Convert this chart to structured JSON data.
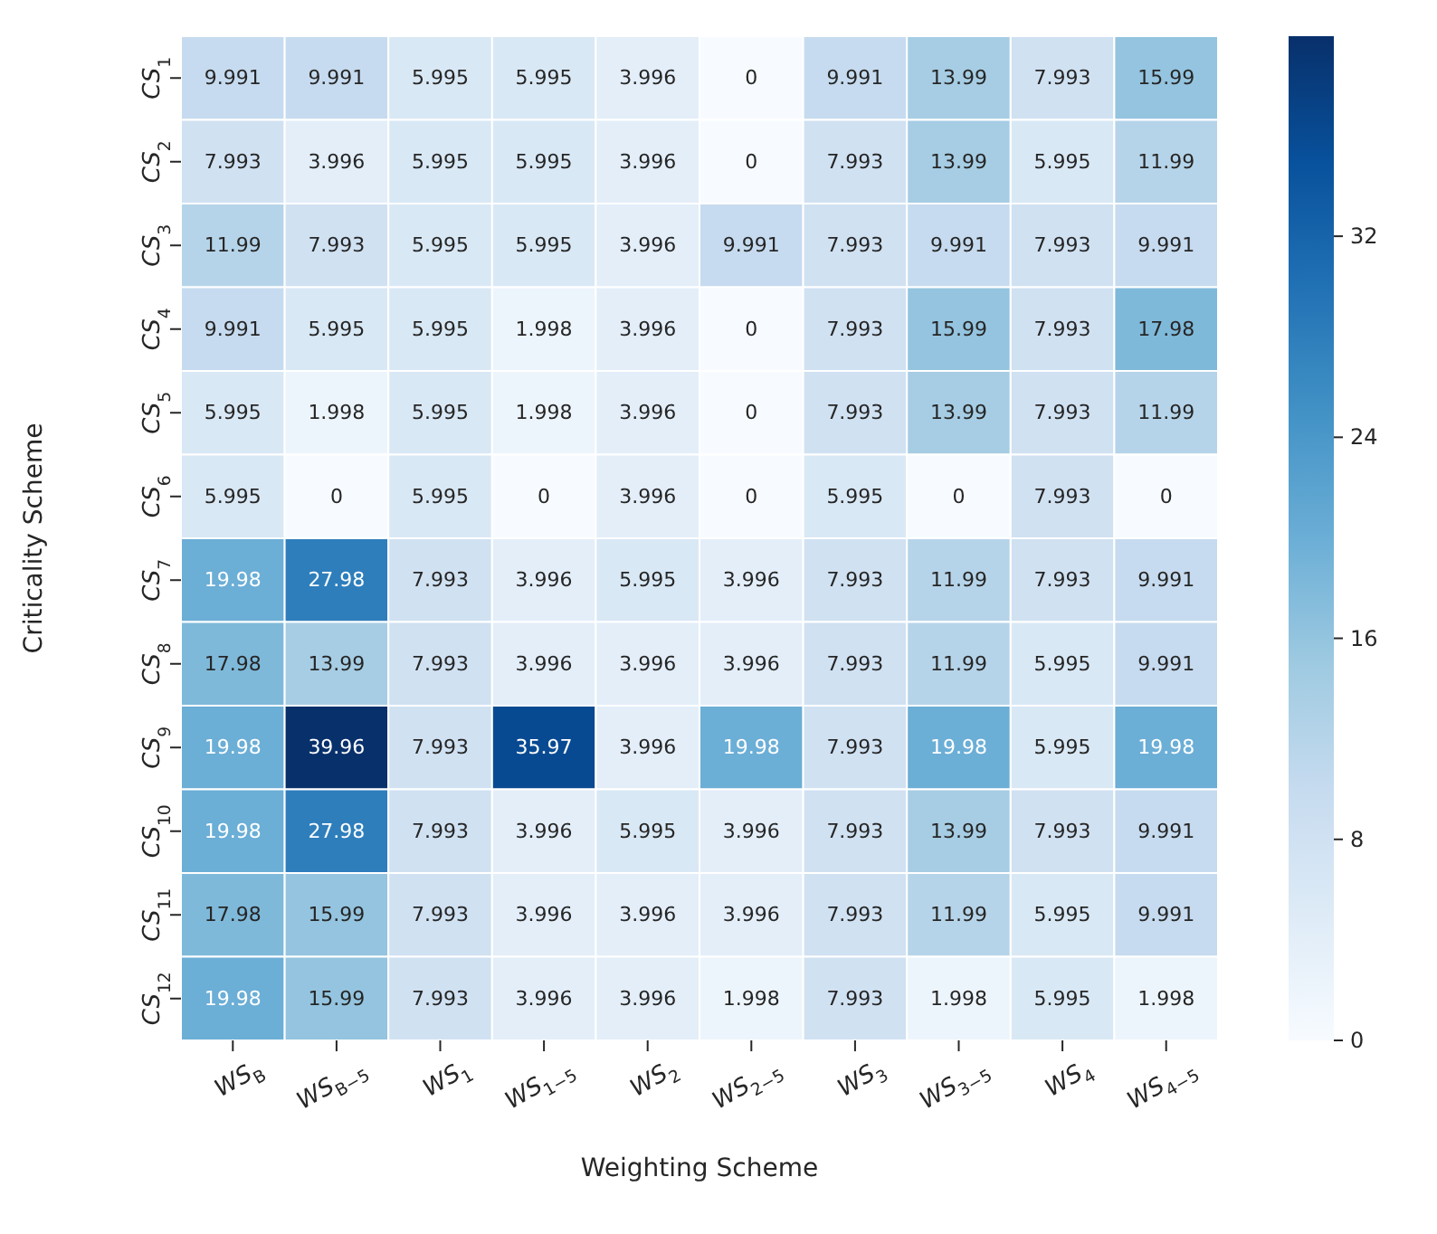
{
  "chart_data": {
    "type": "heatmap",
    "xlabel": "Weighting Scheme",
    "ylabel": "Criticality Scheme",
    "categories": [
      "WS$_{B}$",
      "WS$_{B−5}$",
      "WS$_{1}$",
      "WS$_{1−5}$",
      "WS$_{2}$",
      "WS$_{2−5}$",
      "WS$_{3}$",
      "WS$_{3−5}$",
      "WS$_{4}$",
      "WS$_{4−5}$"
    ],
    "y_categories": [
      "CS$_{1}$",
      "CS$_{2}$",
      "CS$_{3}$",
      "CS$_{4}$",
      "CS$_{5}$",
      "CS$_{6}$",
      "CS$_{7}$",
      "CS$_{8}$",
      "CS$_{9}$",
      "CS$_{10}$",
      "CS$_{11}$",
      "CS$_{12}$"
    ],
    "cells": [
      [
        9.991,
        9.991,
        5.995,
        5.995,
        3.996,
        0,
        9.991,
        13.99,
        7.993,
        15.99
      ],
      [
        7.993,
        3.996,
        5.995,
        5.995,
        3.996,
        0,
        7.993,
        13.99,
        5.995,
        11.99
      ],
      [
        11.99,
        7.993,
        5.995,
        5.995,
        3.996,
        9.991,
        7.993,
        9.991,
        7.993,
        9.991
      ],
      [
        9.991,
        5.995,
        5.995,
        1.998,
        3.996,
        0,
        7.993,
        15.99,
        7.993,
        17.98
      ],
      [
        5.995,
        1.998,
        5.995,
        1.998,
        3.996,
        0,
        7.993,
        13.99,
        7.993,
        11.99
      ],
      [
        5.995,
        0,
        5.995,
        0,
        3.996,
        0,
        5.995,
        0,
        7.993,
        0
      ],
      [
        19.98,
        27.98,
        7.993,
        3.996,
        5.995,
        3.996,
        7.993,
        11.99,
        7.993,
        9.991
      ],
      [
        17.98,
        13.99,
        7.993,
        3.996,
        3.996,
        3.996,
        7.993,
        11.99,
        5.995,
        9.991
      ],
      [
        19.98,
        39.96,
        7.993,
        35.97,
        3.996,
        19.98,
        7.993,
        19.98,
        5.995,
        19.98
      ],
      [
        19.98,
        27.98,
        7.993,
        3.996,
        5.995,
        3.996,
        7.993,
        13.99,
        7.993,
        9.991
      ],
      [
        17.98,
        15.99,
        7.993,
        3.996,
        3.996,
        3.996,
        7.993,
        11.99,
        5.995,
        9.991
      ],
      [
        19.98,
        15.99,
        7.993,
        3.996,
        3.996,
        1.998,
        7.993,
        1.998,
        5.995,
        1.998
      ]
    ],
    "clim": [
      0,
      39.96
    ],
    "cticks": [
      0,
      8,
      16,
      24,
      32
    ],
    "data_labels": true
  }
}
